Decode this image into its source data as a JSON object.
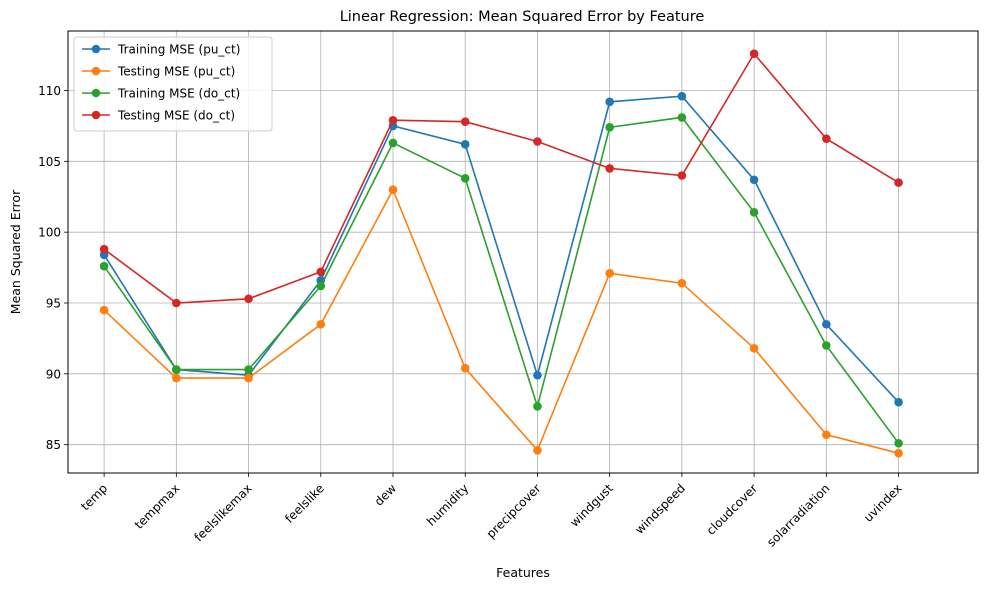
{
  "chart_data": {
    "type": "line",
    "title": "Linear Regression: Mean Squared Error by Feature",
    "xlabel": "Features",
    "ylabel": "Mean Squared Error",
    "categories": [
      "temp",
      "tempmax",
      "feelslikemax",
      "feelslike",
      "dew",
      "humidity",
      "precipcover",
      "windgust",
      "windspeed",
      "cloudcover",
      "solarradiation",
      "uvindex"
    ],
    "ylim": [
      83.0,
      114.2
    ],
    "yticks": [
      85,
      90,
      95,
      100,
      105,
      110
    ],
    "grid": true,
    "legend_position": "top-left",
    "series": [
      {
        "name": "Training MSE (pu_ct)",
        "color": "#1f77b4",
        "values": [
          98.4,
          90.3,
          89.9,
          96.6,
          107.5,
          106.2,
          89.9,
          109.2,
          109.6,
          103.7,
          93.5,
          88.0
        ]
      },
      {
        "name": "Testing MSE (pu_ct)",
        "color": "#ff7f0e",
        "values": [
          94.5,
          89.7,
          89.7,
          93.5,
          103.0,
          90.4,
          84.6,
          97.1,
          96.4,
          91.8,
          85.7,
          84.4
        ]
      },
      {
        "name": "Training MSE (do_ct)",
        "color": "#2ca02c",
        "values": [
          97.6,
          90.3,
          90.3,
          96.2,
          106.3,
          103.8,
          87.7,
          107.4,
          108.1,
          101.4,
          92.0,
          85.1
        ]
      },
      {
        "name": "Testing MSE (do_ct)",
        "color": "#d62728",
        "values": [
          98.8,
          95.0,
          95.3,
          97.2,
          107.9,
          107.8,
          106.4,
          104.5,
          104.0,
          112.6,
          106.6,
          103.5
        ]
      }
    ]
  }
}
